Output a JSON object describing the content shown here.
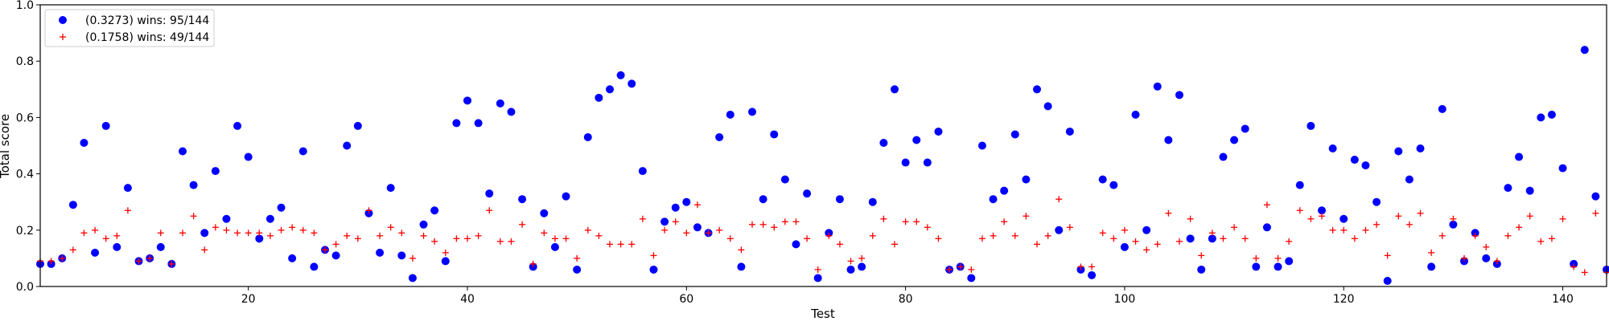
{
  "chart_data": {
    "type": "scatter",
    "title": "",
    "xlabel": "Test",
    "ylabel": "Total score",
    "xlim": [
      1,
      144
    ],
    "ylim": [
      0.0,
      1.0
    ],
    "xticks": [
      20,
      40,
      60,
      80,
      100,
      120,
      140
    ],
    "yticks": [
      0.0,
      0.2,
      0.4,
      0.6,
      0.8,
      1.0
    ],
    "grid": false,
    "legend_position": "top-left",
    "x": [
      1,
      2,
      3,
      4,
      5,
      6,
      7,
      8,
      9,
      10,
      11,
      12,
      13,
      14,
      15,
      16,
      17,
      18,
      19,
      20,
      21,
      22,
      23,
      24,
      25,
      26,
      27,
      28,
      29,
      30,
      31,
      32,
      33,
      34,
      35,
      36,
      37,
      38,
      39,
      40,
      41,
      42,
      43,
      44,
      45,
      46,
      47,
      48,
      49,
      50,
      51,
      52,
      53,
      54,
      55,
      56,
      57,
      58,
      59,
      60,
      61,
      62,
      63,
      64,
      65,
      66,
      67,
      68,
      69,
      70,
      71,
      72,
      73,
      74,
      75,
      76,
      77,
      78,
      79,
      80,
      81,
      82,
      83,
      84,
      85,
      86,
      87,
      88,
      89,
      90,
      91,
      92,
      93,
      94,
      95,
      96,
      97,
      98,
      99,
      100,
      101,
      102,
      103,
      104,
      105,
      106,
      107,
      108,
      109,
      110,
      111,
      112,
      113,
      114,
      115,
      116,
      117,
      118,
      119,
      120,
      121,
      122,
      123,
      124,
      125,
      126,
      127,
      128,
      129,
      130,
      131,
      132,
      133,
      134,
      135,
      136,
      137,
      138,
      139,
      140,
      141,
      142,
      143,
      144
    ],
    "series": [
      {
        "name": "(0.3273) wins: 95/144",
        "marker": "circle",
        "color": "#0000ff",
        "values": [
          0.08,
          0.08,
          0.1,
          0.29,
          0.51,
          0.12,
          0.57,
          0.14,
          0.35,
          0.09,
          0.1,
          0.14,
          0.08,
          0.48,
          0.36,
          0.19,
          0.41,
          0.24,
          0.57,
          0.46,
          0.17,
          0.24,
          0.28,
          0.1,
          0.48,
          0.07,
          0.13,
          0.11,
          0.5,
          0.57,
          0.26,
          0.12,
          0.35,
          0.11,
          0.03,
          0.22,
          0.27,
          0.09,
          0.58,
          0.66,
          0.58,
          0.33,
          0.65,
          0.62,
          0.31,
          0.07,
          0.26,
          0.14,
          0.32,
          0.06,
          0.53,
          0.67,
          0.7,
          0.75,
          0.72,
          0.41,
          0.06,
          0.23,
          0.28,
          0.3,
          0.21,
          0.19,
          0.53,
          0.61,
          0.07,
          0.62,
          0.31,
          0.54,
          0.38,
          0.15,
          0.33,
          0.03,
          0.19,
          0.31,
          0.06,
          0.07,
          0.3,
          0.51,
          0.7,
          0.44,
          0.52,
          0.44,
          0.55,
          0.06,
          0.07,
          0.03,
          0.5,
          0.31,
          0.34,
          0.54,
          0.38,
          0.7,
          0.64,
          0.2,
          0.55,
          0.06,
          0.04,
          0.38,
          0.36,
          0.14,
          0.61,
          0.2,
          0.71,
          0.52,
          0.68,
          0.17,
          0.06,
          0.17,
          0.46,
          0.52,
          0.56,
          0.07,
          0.21,
          0.07,
          0.09,
          0.36,
          0.57,
          0.27,
          0.49,
          0.24,
          0.45,
          0.43,
          0.3,
          0.02,
          0.48,
          0.38,
          0.49,
          0.07,
          0.63,
          0.22,
          0.09,
          0.19,
          0.1,
          0.08,
          0.35,
          0.46,
          0.34,
          0.6,
          0.61,
          0.42,
          0.08,
          0.84,
          0.32,
          0.06
        ]
      },
      {
        "name": "(0.1758) wins: 49/144",
        "marker": "plus",
        "color": "#ff0000",
        "values": [
          0.09,
          0.09,
          0.1,
          0.13,
          0.19,
          0.2,
          0.17,
          0.18,
          0.27,
          0.09,
          0.1,
          0.19,
          0.08,
          0.19,
          0.25,
          0.13,
          0.21,
          0.2,
          0.19,
          0.19,
          0.19,
          0.18,
          0.2,
          0.21,
          0.2,
          0.19,
          0.13,
          0.15,
          0.18,
          0.17,
          0.27,
          0.18,
          0.21,
          0.19,
          0.1,
          0.18,
          0.16,
          0.12,
          0.17,
          0.17,
          0.18,
          0.27,
          0.16,
          0.16,
          0.22,
          0.08,
          0.19,
          0.17,
          0.17,
          0.1,
          0.2,
          0.18,
          0.15,
          0.15,
          0.15,
          0.24,
          0.11,
          0.2,
          0.23,
          0.19,
          0.29,
          0.19,
          0.2,
          0.17,
          0.13,
          0.22,
          0.22,
          0.21,
          0.23,
          0.23,
          0.17,
          0.06,
          0.18,
          0.15,
          0.09,
          0.1,
          0.18,
          0.24,
          0.15,
          0.23,
          0.23,
          0.21,
          0.17,
          0.06,
          0.07,
          0.06,
          0.17,
          0.18,
          0.23,
          0.18,
          0.25,
          0.15,
          0.18,
          0.31,
          0.21,
          0.07,
          0.07,
          0.19,
          0.17,
          0.2,
          0.16,
          0.13,
          0.15,
          0.26,
          0.16,
          0.24,
          0.11,
          0.19,
          0.17,
          0.21,
          0.17,
          0.1,
          0.29,
          0.1,
          0.16,
          0.27,
          0.24,
          0.25,
          0.2,
          0.2,
          0.17,
          0.2,
          0.22,
          0.11,
          0.25,
          0.22,
          0.26,
          0.12,
          0.18,
          0.24,
          0.1,
          0.18,
          0.14,
          0.09,
          0.18,
          0.21,
          0.25,
          0.16,
          0.17,
          0.24,
          0.07,
          0.05,
          0.26,
          0.05
        ]
      }
    ]
  }
}
